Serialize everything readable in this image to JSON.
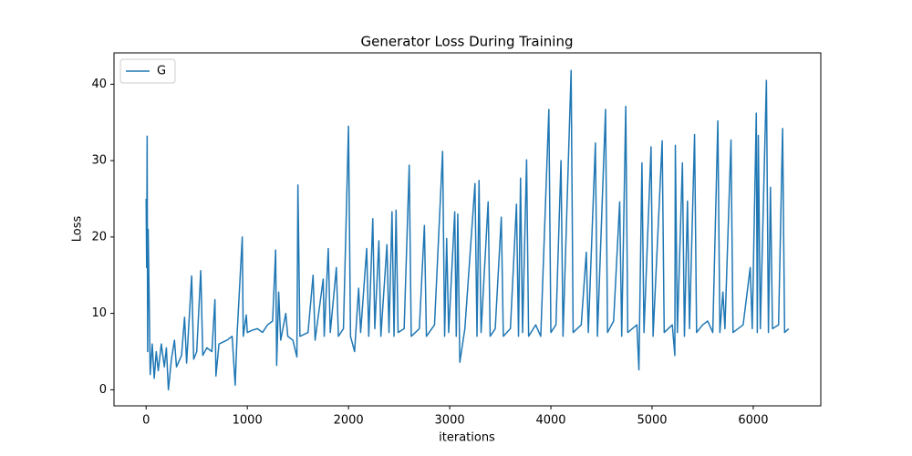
{
  "chart_data": {
    "type": "line",
    "title": "Generator Loss During Training",
    "xlabel": "iterations",
    "ylabel": "Loss",
    "legend": "upper left",
    "grid": false,
    "xlim": [
      -317.5,
      6667.5
    ],
    "xticks": [
      0,
      1000,
      2000,
      3000,
      4000,
      5000,
      6000
    ],
    "ylim": [
      -2.1,
      44.1
    ],
    "yticks": [
      0,
      10,
      20,
      30,
      40
    ],
    "x": [
      0,
      5,
      10,
      15,
      20,
      30,
      40,
      60,
      80,
      100,
      120,
      150,
      180,
      200,
      220,
      250,
      280,
      300,
      350,
      380,
      400,
      450,
      470,
      500,
      540,
      560,
      600,
      650,
      680,
      690,
      720,
      800,
      850,
      880,
      900,
      950,
      960,
      990,
      1000,
      1050,
      1100,
      1150,
      1200,
      1250,
      1280,
      1290,
      1310,
      1330,
      1380,
      1400,
      1450,
      1490,
      1500,
      1520,
      1600,
      1650,
      1670,
      1750,
      1760,
      1800,
      1820,
      1880,
      1900,
      1950,
      2000,
      2020,
      2060,
      2100,
      2120,
      2180,
      2200,
      2240,
      2260,
      2300,
      2320,
      2380,
      2400,
      2430,
      2450,
      2470,
      2490,
      2550,
      2600,
      2620,
      2700,
      2750,
      2770,
      2850,
      2930,
      2950,
      2970,
      2990,
      3050,
      3065,
      3080,
      3100,
      3150,
      3250,
      3270,
      3290,
      3310,
      3380,
      3400,
      3450,
      3510,
      3530,
      3600,
      3660,
      3680,
      3700,
      3720,
      3760,
      3780,
      3850,
      3900,
      3980,
      4000,
      4050,
      4100,
      4120,
      4200,
      4220,
      4300,
      4350,
      4370,
      4440,
      4460,
      4540,
      4560,
      4620,
      4680,
      4700,
      4740,
      4760,
      4850,
      4870,
      4900,
      4920,
      4990,
      5010,
      5100,
      5120,
      5200,
      5225,
      5230,
      5250,
      5300,
      5320,
      5350,
      5370,
      5420,
      5440,
      5500,
      5550,
      5600,
      5650,
      5670,
      5700,
      5720,
      5780,
      5800,
      5900,
      5970,
      5990,
      6030,
      6040,
      6050,
      6070,
      6130,
      6150,
      6170,
      6190,
      6250,
      6290,
      6310,
      6350
    ],
    "series": [
      {
        "name": "G",
        "color": "#1f77b4",
        "values": [
          25,
          16,
          33.2,
          5,
          21,
          12,
          2,
          6,
          1.5,
          5,
          2.5,
          6,
          3,
          5.5,
          0,
          4,
          6.5,
          3,
          4.5,
          9.5,
          3.5,
          14.9,
          4,
          5,
          15.6,
          4.5,
          5.5,
          5,
          11.8,
          1.8,
          6,
          6.5,
          7,
          0.6,
          7.5,
          20,
          7,
          9.8,
          7.5,
          7.8,
          8,
          7.5,
          8.5,
          9,
          18.3,
          3.2,
          12.8,
          6.5,
          10,
          7,
          6.5,
          4.3,
          26.8,
          7,
          7.5,
          15,
          6.5,
          14.5,
          7,
          18.5,
          7.5,
          16,
          7,
          8,
          34.5,
          7,
          5,
          13.3,
          7.5,
          18.5,
          7,
          22.4,
          8,
          19.5,
          7,
          19,
          7.5,
          23.3,
          7,
          23.5,
          7.5,
          8,
          29.4,
          7,
          8,
          21.5,
          7,
          8.5,
          31.2,
          7,
          19.8,
          7.5,
          23.3,
          7,
          23,
          3.6,
          8,
          27,
          7,
          27.4,
          7.5,
          24.6,
          7,
          8,
          22.6,
          7,
          8,
          24.3,
          7,
          27.7,
          7.5,
          30.1,
          7,
          8.5,
          7,
          36.7,
          7.5,
          8.5,
          30,
          7,
          41.8,
          7.5,
          8.5,
          18,
          7.5,
          32.3,
          7,
          36.7,
          7.5,
          9,
          24.6,
          7,
          37.1,
          7.5,
          8.5,
          2.6,
          29.7,
          7.5,
          31.8,
          7,
          32.6,
          7.5,
          8.5,
          4.5,
          32,
          7.5,
          29.7,
          7,
          24.7,
          8,
          33.4,
          7.5,
          8.5,
          9,
          7.5,
          35.2,
          7.5,
          12.8,
          8,
          32.7,
          7.5,
          8.5,
          16,
          8,
          36.2,
          7.5,
          33.3,
          8,
          40.5,
          7.5,
          26.5,
          8,
          8.5,
          34.2,
          7.5,
          8
        ]
      }
    ]
  }
}
